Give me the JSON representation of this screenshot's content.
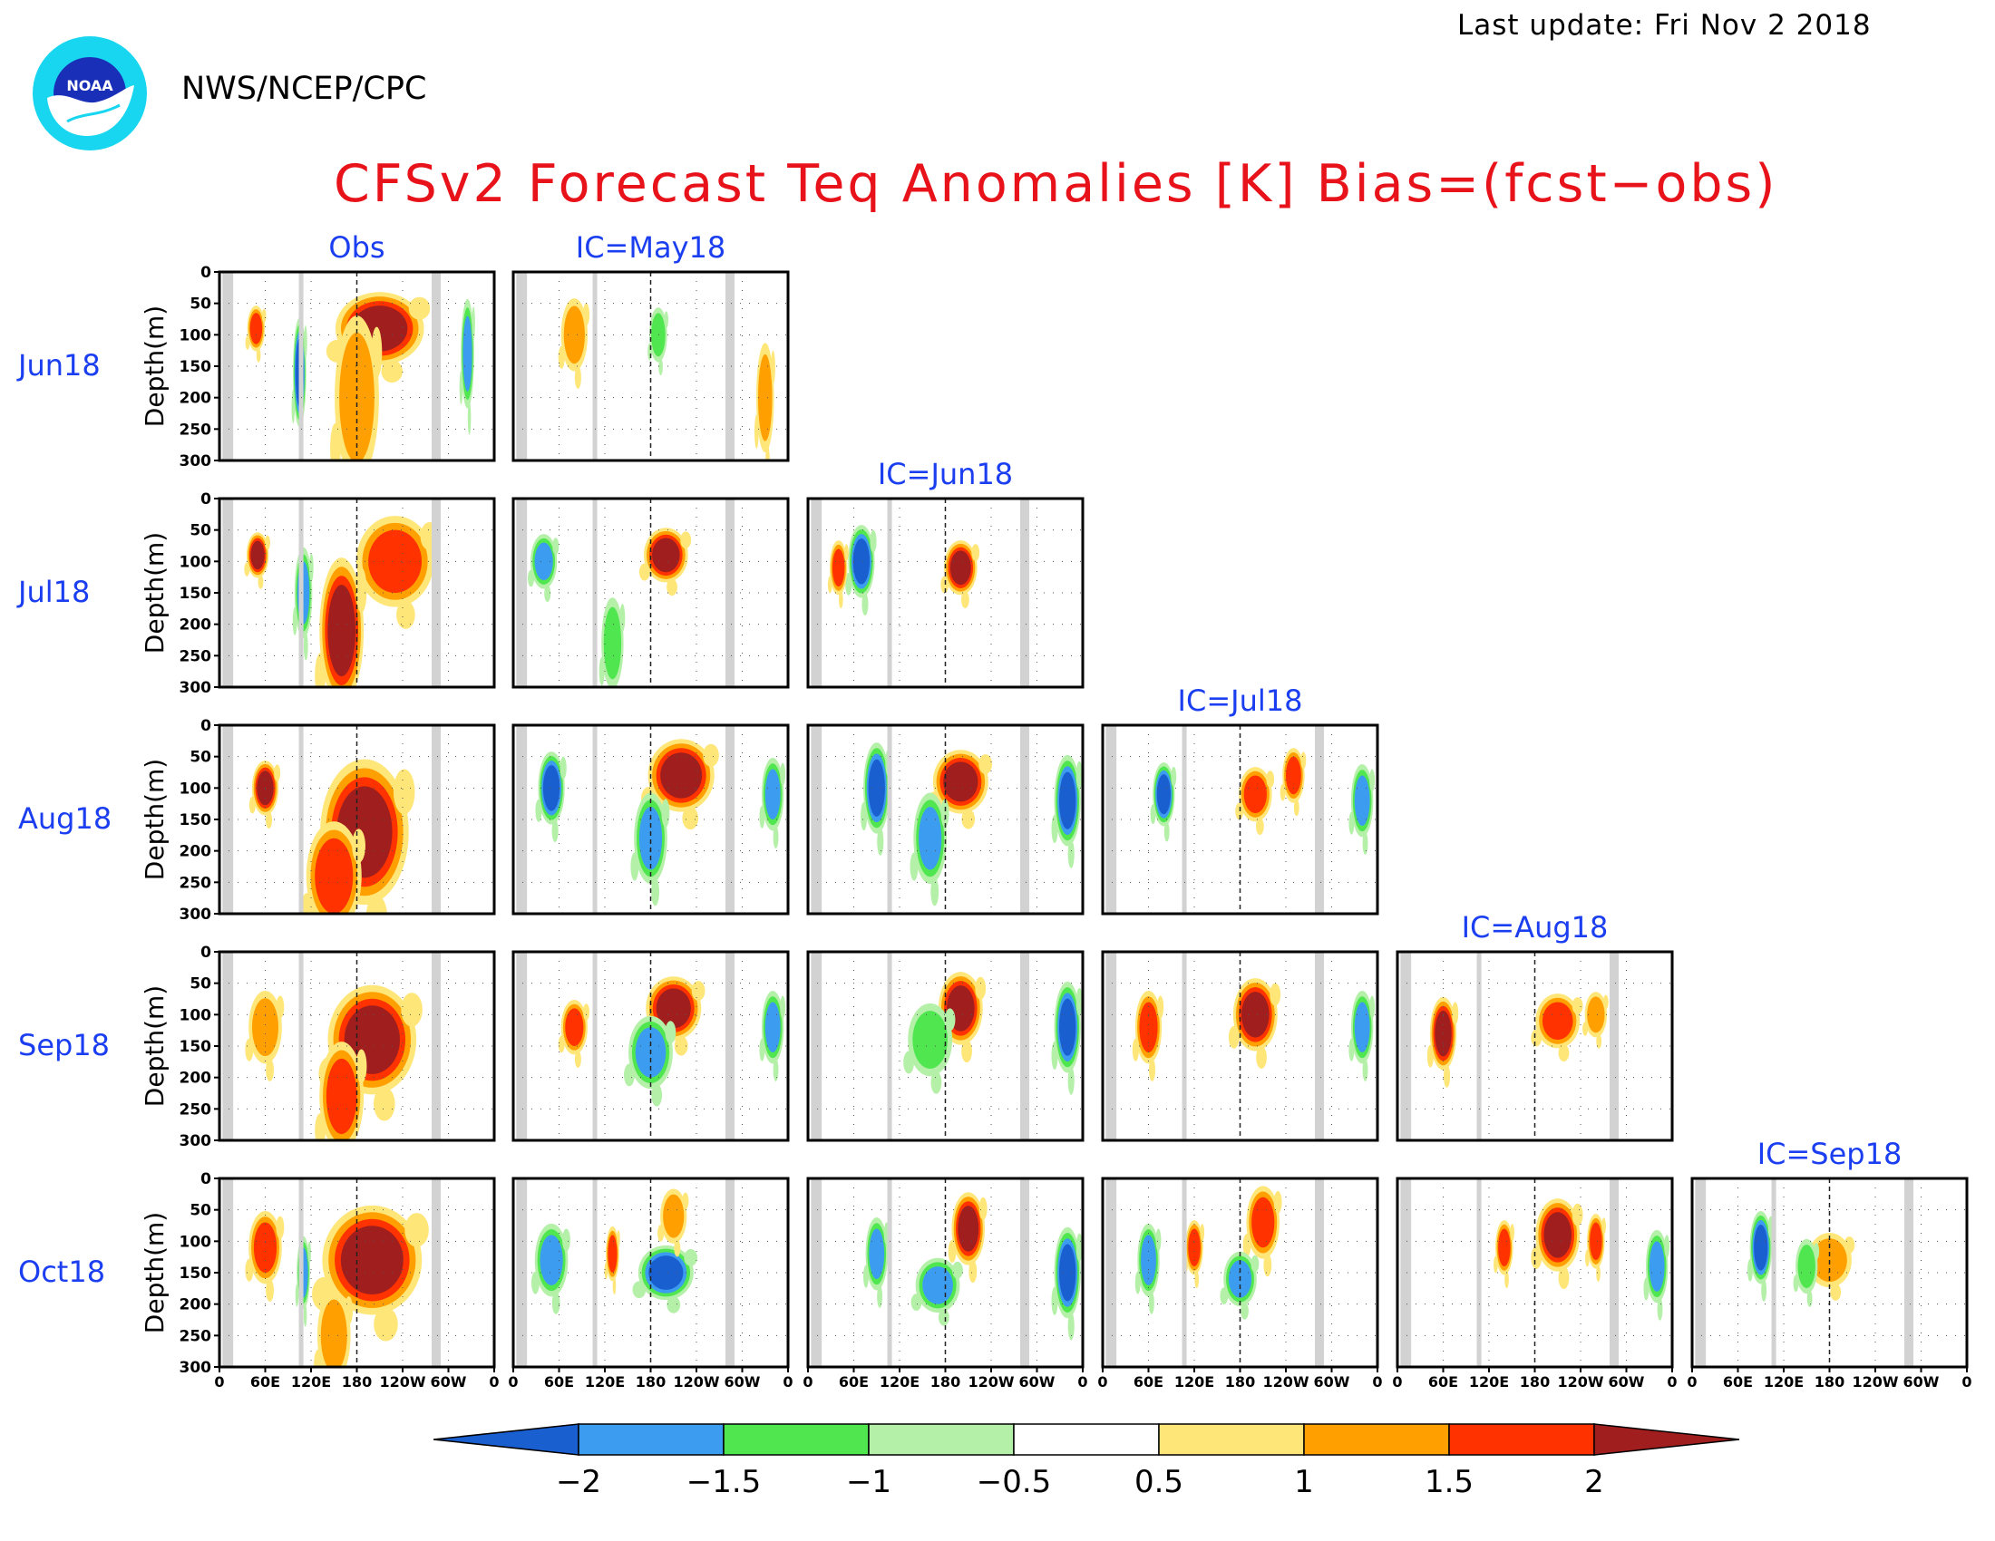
{
  "header": {
    "logo_text": "NOAA",
    "org": "NWS/NCEP/CPC",
    "last_update": "Last update: Fri Nov  2 2018",
    "title": "CFSv2 Forecast Teq Anomalies [K] Bias=(fcst−obs)"
  },
  "chart_data": {
    "type": "heatmap",
    "title": "CFSv2 Forecast Teq Anomalies [K] Bias=(fcst−obs)",
    "ylabel": "Depth(m)",
    "y_ticks": [
      "0",
      "50",
      "100",
      "150",
      "200",
      "250",
      "300"
    ],
    "ylim": [
      300,
      0
    ],
    "x_ticks": [
      "0",
      "60E",
      "120E",
      "180",
      "120W",
      "60W",
      "0"
    ],
    "xlim_degrees_east": [
      0,
      360
    ],
    "rows": [
      "Jun18",
      "Jul18",
      "Aug18",
      "Sep18",
      "Oct18"
    ],
    "columns": [
      "Obs",
      "IC=May18",
      "IC=Jun18",
      "IC=Jul18",
      "IC=Aug18",
      "IC=Sep18"
    ],
    "panels": [
      {
        "row": "Jun18",
        "columns": [
          "Obs",
          "IC=May18"
        ]
      },
      {
        "row": "Jul18",
        "columns": [
          "Obs",
          "IC=May18",
          "IC=Jun18"
        ]
      },
      {
        "row": "Aug18",
        "columns": [
          "Obs",
          "IC=May18",
          "IC=Jun18",
          "IC=Jul18"
        ]
      },
      {
        "row": "Sep18",
        "columns": [
          "Obs",
          "IC=May18",
          "IC=Jun18",
          "IC=Jul18",
          "IC=Aug18"
        ]
      },
      {
        "row": "Oct18",
        "columns": [
          "Obs",
          "IC=May18",
          "IC=Jun18",
          "IC=Jul18",
          "IC=Aug18",
          "IC=Sep18"
        ]
      }
    ],
    "land_mask_longitudes": [
      [
        4,
        18
      ],
      [
        104,
        110
      ],
      [
        278,
        290
      ]
    ],
    "colorbar": {
      "tick_labels": [
        "−2",
        "−1.5",
        "−1",
        "−0.5",
        "0.5",
        "1",
        "1.5",
        "2"
      ],
      "levels": [
        -2,
        -1.5,
        -1,
        -0.5,
        0.5,
        1,
        1.5,
        2
      ],
      "colors": [
        "#1a5fcf",
        "#3c9cf0",
        "#50e650",
        "#b4f0a8",
        "#ffffff",
        "#ffe678",
        "#ffa000",
        "#ff3200",
        "#a01e1e"
      ]
    },
    "anomaly_features_K": [
      {
        "panel": "Jun18/Obs",
        "features": [
          {
            "lon": 210,
            "depth": 90,
            "value": 2,
            "spread_lon": 40,
            "spread_depth": 40
          },
          {
            "lon": 180,
            "depth": 200,
            "value": 1,
            "spread_lon": 20,
            "spread_depth": 90
          },
          {
            "lon": 105,
            "depth": 160,
            "value": -2,
            "spread_lon": 6,
            "spread_depth": 60
          },
          {
            "lon": 48,
            "depth": 90,
            "value": 1.5,
            "spread_lon": 8,
            "spread_depth": 25
          },
          {
            "lon": 325,
            "depth": 130,
            "value": -1.5,
            "spread_lon": 6,
            "spread_depth": 60
          }
        ]
      },
      {
        "panel": "Jun18/IC=May18",
        "features": [
          {
            "lon": 80,
            "depth": 100,
            "value": 1,
            "spread_lon": 12,
            "spread_depth": 40
          },
          {
            "lon": 190,
            "depth": 100,
            "value": -1,
            "spread_lon": 8,
            "spread_depth": 30
          },
          {
            "lon": 330,
            "depth": 200,
            "value": 1,
            "spread_lon": 8,
            "spread_depth": 60
          }
        ]
      },
      {
        "panel": "Jul18/Obs",
        "features": [
          {
            "lon": 230,
            "depth": 100,
            "value": 1.5,
            "spread_lon": 35,
            "spread_depth": 50
          },
          {
            "lon": 160,
            "depth": 210,
            "value": 2,
            "spread_lon": 20,
            "spread_depth": 80
          },
          {
            "lon": 50,
            "depth": 90,
            "value": 2,
            "spread_lon": 10,
            "spread_depth": 25
          },
          {
            "lon": 110,
            "depth": 150,
            "value": -1.5,
            "spread_lon": 8,
            "spread_depth": 50
          }
        ]
      },
      {
        "panel": "Jul18/IC=May18",
        "features": [
          {
            "lon": 200,
            "depth": 90,
            "value": 2,
            "spread_lon": 20,
            "spread_depth": 30
          },
          {
            "lon": 40,
            "depth": 100,
            "value": -1.5,
            "spread_lon": 12,
            "spread_depth": 30
          },
          {
            "lon": 130,
            "depth": 230,
            "value": -1,
            "spread_lon": 10,
            "spread_depth": 50
          }
        ]
      },
      {
        "panel": "Jul18/IC=Jun18",
        "features": [
          {
            "lon": 70,
            "depth": 100,
            "value": -2,
            "spread_lon": 12,
            "spread_depth": 40
          },
          {
            "lon": 200,
            "depth": 110,
            "value": 2,
            "spread_lon": 15,
            "spread_depth": 30
          },
          {
            "lon": 40,
            "depth": 110,
            "value": 1.5,
            "spread_lon": 8,
            "spread_depth": 30
          }
        ]
      },
      {
        "panel": "Aug18/Obs",
        "features": [
          {
            "lon": 190,
            "depth": 170,
            "value": 2,
            "spread_lon": 40,
            "spread_depth": 80
          },
          {
            "lon": 60,
            "depth": 100,
            "value": 2,
            "spread_lon": 12,
            "spread_depth": 30
          },
          {
            "lon": 150,
            "depth": 240,
            "value": 1.5,
            "spread_lon": 25,
            "spread_depth": 60
          }
        ]
      },
      {
        "panel": "Aug18/IC=May18",
        "features": [
          {
            "lon": 220,
            "depth": 80,
            "value": 2,
            "spread_lon": 30,
            "spread_depth": 40
          },
          {
            "lon": 50,
            "depth": 100,
            "value": -2,
            "spread_lon": 12,
            "spread_depth": 40
          },
          {
            "lon": 180,
            "depth": 180,
            "value": -1.5,
            "spread_lon": 15,
            "spread_depth": 50
          },
          {
            "lon": 340,
            "depth": 110,
            "value": -1.5,
            "spread_lon": 10,
            "spread_depth": 40
          }
        ]
      },
      {
        "panel": "Aug18/IC=Jun18",
        "features": [
          {
            "lon": 200,
            "depth": 90,
            "value": 2,
            "spread_lon": 25,
            "spread_depth": 35
          },
          {
            "lon": 90,
            "depth": 100,
            "value": -2,
            "spread_lon": 12,
            "spread_depth": 50
          },
          {
            "lon": 340,
            "depth": 120,
            "value": -2,
            "spread_lon": 12,
            "spread_depth": 50
          },
          {
            "lon": 160,
            "depth": 180,
            "value": -1.5,
            "spread_lon": 15,
            "spread_depth": 50
          }
        ]
      },
      {
        "panel": "Aug18/IC=Jul18",
        "features": [
          {
            "lon": 200,
            "depth": 110,
            "value": 1.5,
            "spread_lon": 15,
            "spread_depth": 30
          },
          {
            "lon": 80,
            "depth": 110,
            "value": -2,
            "spread_lon": 10,
            "spread_depth": 35
          },
          {
            "lon": 250,
            "depth": 80,
            "value": 1.5,
            "spread_lon": 10,
            "spread_depth": 30
          },
          {
            "lon": 340,
            "depth": 120,
            "value": -1.5,
            "spread_lon": 10,
            "spread_depth": 40
          }
        ]
      },
      {
        "panel": "Sep18/Obs",
        "features": [
          {
            "lon": 200,
            "depth": 140,
            "value": 2,
            "spread_lon": 40,
            "spread_depth": 60
          },
          {
            "lon": 160,
            "depth": 230,
            "value": 1.5,
            "spread_lon": 20,
            "spread_depth": 60
          },
          {
            "lon": 60,
            "depth": 120,
            "value": 1,
            "spread_lon": 15,
            "spread_depth": 40
          }
        ]
      },
      {
        "panel": "Sep18/IC=May18",
        "features": [
          {
            "lon": 210,
            "depth": 90,
            "value": 2,
            "spread_lon": 25,
            "spread_depth": 35
          },
          {
            "lon": 180,
            "depth": 160,
            "value": -1.5,
            "spread_lon": 20,
            "spread_depth": 40
          },
          {
            "lon": 80,
            "depth": 120,
            "value": 1.5,
            "spread_lon": 12,
            "spread_depth": 30
          },
          {
            "lon": 340,
            "depth": 120,
            "value": -1.5,
            "spread_lon": 10,
            "spread_depth": 40
          }
        ]
      },
      {
        "panel": "Sep18/IC=Jun18",
        "features": [
          {
            "lon": 200,
            "depth": 90,
            "value": 2,
            "spread_lon": 20,
            "spread_depth": 40
          },
          {
            "lon": 340,
            "depth": 120,
            "value": -2,
            "spread_lon": 12,
            "spread_depth": 50
          },
          {
            "lon": 160,
            "depth": 140,
            "value": -1,
            "spread_lon": 20,
            "spread_depth": 40
          }
        ]
      },
      {
        "panel": "Sep18/IC=Jul18",
        "features": [
          {
            "lon": 200,
            "depth": 100,
            "value": 2,
            "spread_lon": 20,
            "spread_depth": 40
          },
          {
            "lon": 60,
            "depth": 120,
            "value": 1.5,
            "spread_lon": 12,
            "spread_depth": 40
          },
          {
            "lon": 340,
            "depth": 120,
            "value": -1.5,
            "spread_lon": 10,
            "spread_depth": 40
          }
        ]
      },
      {
        "panel": "Sep18/IC=Aug18",
        "features": [
          {
            "lon": 60,
            "depth": 130,
            "value": 2,
            "spread_lon": 12,
            "spread_depth": 40
          },
          {
            "lon": 210,
            "depth": 110,
            "value": 1.5,
            "spread_lon": 20,
            "spread_depth": 30
          },
          {
            "lon": 260,
            "depth": 100,
            "value": 1,
            "spread_lon": 10,
            "spread_depth": 25
          }
        ]
      },
      {
        "panel": "Oct18/Obs",
        "features": [
          {
            "lon": 200,
            "depth": 130,
            "value": 2,
            "spread_lon": 45,
            "spread_depth": 60
          },
          {
            "lon": 60,
            "depth": 110,
            "value": 1.5,
            "spread_lon": 15,
            "spread_depth": 40
          },
          {
            "lon": 110,
            "depth": 150,
            "value": -1.5,
            "spread_lon": 6,
            "spread_depth": 40
          },
          {
            "lon": 150,
            "depth": 250,
            "value": 1,
            "spread_lon": 15,
            "spread_depth": 50
          }
        ]
      },
      {
        "panel": "Oct18/IC=May18",
        "features": [
          {
            "lon": 200,
            "depth": 150,
            "value": -2,
            "spread_lon": 25,
            "spread_depth": 30
          },
          {
            "lon": 50,
            "depth": 130,
            "value": -1.5,
            "spread_lon": 15,
            "spread_depth": 40
          },
          {
            "lon": 210,
            "depth": 60,
            "value": 1,
            "spread_lon": 12,
            "spread_depth": 30
          },
          {
            "lon": 130,
            "depth": 120,
            "value": 1.5,
            "spread_lon": 6,
            "spread_depth": 30
          }
        ]
      },
      {
        "panel": "Oct18/IC=Jun18",
        "features": [
          {
            "lon": 210,
            "depth": 80,
            "value": 2,
            "spread_lon": 15,
            "spread_depth": 40
          },
          {
            "lon": 340,
            "depth": 150,
            "value": -2,
            "spread_lon": 12,
            "spread_depth": 50
          },
          {
            "lon": 90,
            "depth": 120,
            "value": -1.5,
            "spread_lon": 10,
            "spread_depth": 40
          },
          {
            "lon": 170,
            "depth": 170,
            "value": -1.5,
            "spread_lon": 20,
            "spread_depth": 30
          }
        ]
      },
      {
        "panel": "Oct18/IC=Jul18",
        "features": [
          {
            "lon": 210,
            "depth": 70,
            "value": 1.5,
            "spread_lon": 15,
            "spread_depth": 40
          },
          {
            "lon": 180,
            "depth": 160,
            "value": -1.5,
            "spread_lon": 15,
            "spread_depth": 30
          },
          {
            "lon": 120,
            "depth": 110,
            "value": 1.5,
            "spread_lon": 8,
            "spread_depth": 30
          },
          {
            "lon": 60,
            "depth": 130,
            "value": -1.5,
            "spread_lon": 10,
            "spread_depth": 40
          }
        ]
      },
      {
        "panel": "Oct18/IC=Aug18",
        "features": [
          {
            "lon": 210,
            "depth": 90,
            "value": 2,
            "spread_lon": 20,
            "spread_depth": 40
          },
          {
            "lon": 260,
            "depth": 100,
            "value": 1.5,
            "spread_lon": 8,
            "spread_depth": 30
          },
          {
            "lon": 140,
            "depth": 110,
            "value": 1.5,
            "spread_lon": 8,
            "spread_depth": 30
          },
          {
            "lon": 340,
            "depth": 140,
            "value": -1.5,
            "spread_lon": 10,
            "spread_depth": 40
          }
        ]
      },
      {
        "panel": "Oct18/IC=Sep18",
        "features": [
          {
            "lon": 90,
            "depth": 110,
            "value": -2,
            "spread_lon": 10,
            "spread_depth": 40
          },
          {
            "lon": 180,
            "depth": 130,
            "value": 1,
            "spread_lon": 20,
            "spread_depth": 30
          },
          {
            "lon": 150,
            "depth": 140,
            "value": -1,
            "spread_lon": 10,
            "spread_depth": 30
          }
        ]
      }
    ]
  }
}
